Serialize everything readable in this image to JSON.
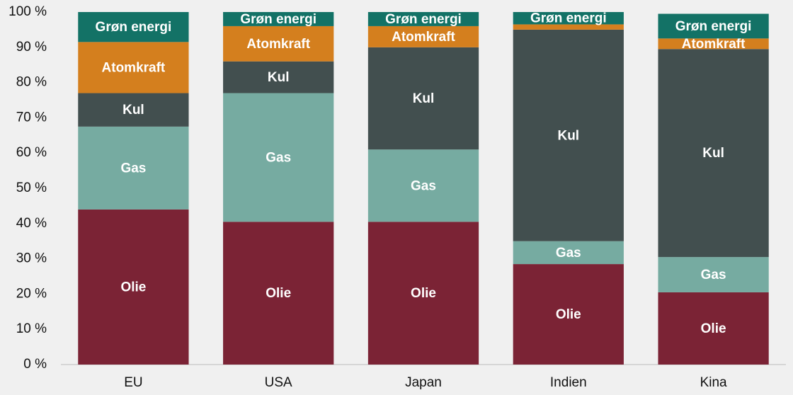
{
  "chart_data": {
    "type": "stacked-bar",
    "categories": [
      "EU",
      "USA",
      "Japan",
      "Indien",
      "Kina"
    ],
    "series": [
      {
        "name": "Olie",
        "color": "#7b2335",
        "values": [
          44,
          40.5,
          40.5,
          28.5,
          20.5
        ]
      },
      {
        "name": "Gas",
        "color": "#76aba1",
        "values": [
          23.5,
          36.5,
          20.5,
          6.5,
          10
        ]
      },
      {
        "name": "Kul",
        "color": "#424f4f",
        "values": [
          9.5,
          9,
          29,
          60,
          59
        ]
      },
      {
        "name": "Atomkraft",
        "color": "#d47f1e",
        "values": [
          14.5,
          10,
          6,
          1.5,
          3
        ]
      },
      {
        "name": "Grøn energi",
        "color": "#137266",
        "values": [
          8.5,
          4,
          4,
          3.5,
          7
        ]
      }
    ],
    "ylim": [
      0,
      100
    ],
    "yticks": [
      {
        "value": 0,
        "label": "0 %"
      },
      {
        "value": 10,
        "label": "10 %"
      },
      {
        "value": 20,
        "label": "20 %"
      },
      {
        "value": 30,
        "label": "30 %"
      },
      {
        "value": 40,
        "label": "40 %"
      },
      {
        "value": 50,
        "label": "50 %"
      },
      {
        "value": 60,
        "label": "60 %"
      },
      {
        "value": 70,
        "label": "70 %"
      },
      {
        "value": 80,
        "label": "80 %"
      },
      {
        "value": 90,
        "label": "90 %"
      },
      {
        "value": 100,
        "label": "100 %"
      }
    ],
    "grid": false
  }
}
